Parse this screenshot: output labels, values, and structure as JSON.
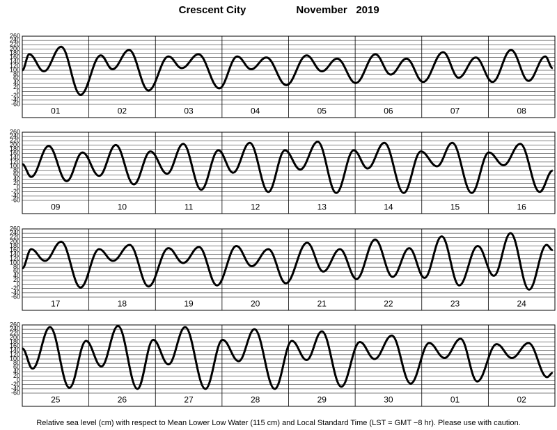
{
  "header": {
    "location": "Crescent City",
    "month": "November",
    "year": "2019"
  },
  "footnote": "Relative sea level (cm) with respect to Mean Lower Low Water (115 cm) and Local Standard Time (LST = GMT −8 hr). Please use with caution.",
  "chart_data": [
    {
      "type": "line",
      "xlim": [
        0,
        192
      ],
      "ylim": [
        -60,
        260
      ],
      "yticks": [
        -60,
        -40,
        -20,
        0,
        20,
        40,
        60,
        80,
        100,
        120,
        140,
        160,
        180,
        200,
        220,
        240,
        260
      ],
      "xticks": [
        {
          "value": 12,
          "label": "01"
        },
        {
          "value": 36,
          "label": "02"
        },
        {
          "value": 60,
          "label": "03"
        },
        {
          "value": 84,
          "label": "04"
        },
        {
          "value": 108,
          "label": "05"
        },
        {
          "value": 132,
          "label": "06"
        },
        {
          "value": 156,
          "label": "07"
        },
        {
          "value": 180,
          "label": "08"
        }
      ],
      "color": "#000000",
      "x": [
        0,
        2.5,
        7.8,
        14,
        21,
        28.3,
        32.5,
        38.5,
        45.5,
        52.7,
        57.5,
        63.5,
        71,
        77.5,
        82.5,
        88,
        95.2,
        102.5,
        108,
        113.5,
        120.2,
        127.3,
        132.8,
        138.5,
        144.5,
        151.7,
        157.3,
        163.5,
        169.5,
        176.2,
        182.5,
        188.5,
        191.2
      ],
      "values": [
        100,
        175,
        95,
        210,
        -15,
        170,
        105,
        195,
        5,
        165,
        110,
        175,
        15,
        165,
        105,
        160,
        30,
        170,
        95,
        155,
        40,
        175,
        80,
        155,
        45,
        185,
        65,
        160,
        45,
        195,
        50,
        165,
        110
      ]
    },
    {
      "type": "line",
      "xlim": [
        0,
        192
      ],
      "ylim": [
        -60,
        260
      ],
      "yticks": [
        -60,
        -40,
        -20,
        0,
        20,
        40,
        60,
        80,
        100,
        120,
        140,
        160,
        180,
        200,
        220,
        240,
        260
      ],
      "xticks": [
        {
          "value": 12,
          "label": "09"
        },
        {
          "value": 36,
          "label": "10"
        },
        {
          "value": 60,
          "label": "11"
        },
        {
          "value": 84,
          "label": "12"
        },
        {
          "value": 108,
          "label": "13"
        },
        {
          "value": 132,
          "label": "14"
        },
        {
          "value": 156,
          "label": "15"
        },
        {
          "value": 180,
          "label": "16"
        }
      ],
      "color": "#000000",
      "x": [
        0,
        3.2,
        9.5,
        16,
        21.7,
        27.7,
        33.7,
        40.2,
        46.2,
        52.2,
        58,
        64.5,
        70.7,
        76,
        82,
        88.7,
        94.7,
        100.2,
        106.5,
        113.2,
        119.5,
        124.5,
        130.5,
        137.5,
        143.7,
        149.5,
        155,
        162,
        168.2,
        173.5,
        179.5,
        186.5,
        191.2
      ],
      "values": [
        110,
        50,
        195,
        30,
        165,
        55,
        200,
        15,
        170,
        65,
        205,
        -10,
        175,
        70,
        210,
        -20,
        175,
        85,
        215,
        -25,
        175,
        90,
        210,
        -25,
        170,
        100,
        210,
        -25,
        165,
        105,
        205,
        -20,
        80
      ]
    },
    {
      "type": "line",
      "xlim": [
        0,
        192
      ],
      "ylim": [
        -60,
        260
      ],
      "yticks": [
        -60,
        -40,
        -20,
        0,
        20,
        40,
        60,
        80,
        100,
        120,
        140,
        160,
        180,
        200,
        220,
        240,
        260
      ],
      "xticks": [
        {
          "value": 12,
          "label": "17"
        },
        {
          "value": 36,
          "label": "18"
        },
        {
          "value": 60,
          "label": "19"
        },
        {
          "value": 84,
          "label": "20"
        },
        {
          "value": 108,
          "label": "21"
        },
        {
          "value": 132,
          "label": "22"
        },
        {
          "value": 156,
          "label": "23"
        },
        {
          "value": 180,
          "label": "24"
        }
      ],
      "color": "#000000",
      "x": [
        0,
        3.2,
        8.2,
        14,
        21,
        27.7,
        32.7,
        38.7,
        45.5,
        52.7,
        58,
        63.7,
        70.2,
        77.2,
        82.7,
        88.7,
        95,
        102.7,
        108.5,
        114.5,
        120.5,
        127.2,
        133.5,
        139.5,
        145,
        151.2,
        157.5,
        164.2,
        170,
        176,
        182.7,
        189,
        191.2
      ],
      "values": [
        75,
        165,
        110,
        200,
        -15,
        165,
        110,
        185,
        -10,
        170,
        100,
        175,
        -5,
        180,
        85,
        165,
        5,
        195,
        60,
        165,
        25,
        210,
        35,
        170,
        30,
        225,
        -5,
        180,
        40,
        240,
        -25,
        185,
        160
      ]
    },
    {
      "type": "line",
      "xlim": [
        0,
        192
      ],
      "ylim": [
        -60,
        260
      ],
      "yticks": [
        -60,
        -40,
        -20,
        0,
        20,
        40,
        60,
        80,
        100,
        120,
        140,
        160,
        180,
        200,
        220,
        240,
        260
      ],
      "xticks": [
        {
          "value": 12,
          "label": "25"
        },
        {
          "value": 36,
          "label": "26"
        },
        {
          "value": 60,
          "label": "27"
        },
        {
          "value": 84,
          "label": "28"
        },
        {
          "value": 108,
          "label": "29"
        },
        {
          "value": 132,
          "label": "30"
        },
        {
          "value": 156,
          "label": "01"
        },
        {
          "value": 180,
          "label": "02"
        }
      ],
      "color": "#000000",
      "x": [
        0,
        3.7,
        10,
        17,
        23,
        28.5,
        34.5,
        41.5,
        47.2,
        52.7,
        58.7,
        66,
        72.2,
        78,
        83.7,
        91,
        97.2,
        102.5,
        108,
        115,
        121.7,
        127,
        133.2,
        140,
        146.7,
        152.2,
        158,
        164,
        171,
        176.5,
        182.5,
        189.2,
        191.2
      ],
      "values": [
        150,
        55,
        250,
        -35,
        185,
        65,
        255,
        -40,
        190,
        75,
        250,
        -40,
        190,
        90,
        240,
        -40,
        185,
        95,
        230,
        -30,
        180,
        100,
        210,
        -15,
        175,
        105,
        195,
        -5,
        170,
        105,
        175,
        15,
        35
      ]
    }
  ]
}
